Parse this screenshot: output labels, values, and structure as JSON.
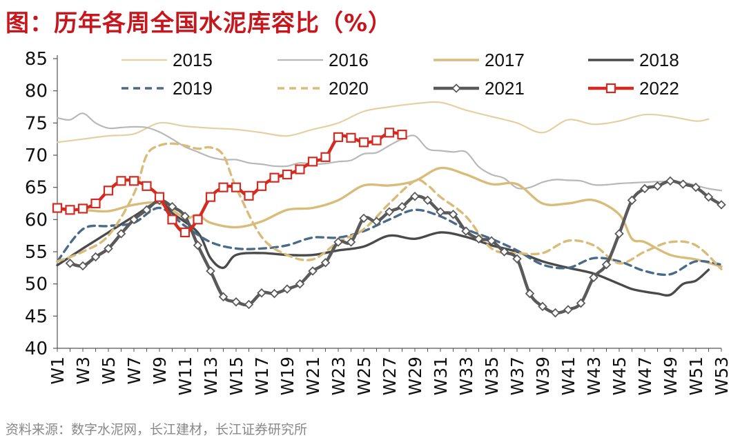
{
  "title": "图：历年各周全国水泥库容比（%）",
  "source": "资料来源：数字水泥网，长江建材，长江证券研究所",
  "colors": {
    "2015": "#e6cfa0",
    "2016": "#b8b8b8",
    "2017": "#d9bb7a",
    "2018": "#4a4a4a",
    "2019": "#4a6a8a",
    "2020": "#d9bb7a",
    "2021": "#5a5a5a",
    "2022": "#d42a20"
  },
  "chart_data": {
    "type": "line",
    "title": "历年各周全国水泥库容比（%）",
    "xlabel": "",
    "ylabel": "",
    "ylim": [
      40,
      85
    ],
    "yticks": [
      "40",
      "45",
      "50",
      "55",
      "60",
      "65",
      "70",
      "75",
      "80",
      "85"
    ],
    "xlim": [
      1,
      53
    ],
    "x_tick_labels": [
      "W1",
      "W3",
      "W5",
      "W7",
      "W9",
      "W11",
      "W13",
      "W15",
      "W17",
      "W19",
      "W21",
      "W23",
      "W25",
      "W27",
      "W29",
      "W31",
      "W33",
      "W35",
      "W37",
      "W39",
      "W41",
      "W43",
      "W45",
      "W47",
      "W49",
      "W51",
      "W53"
    ],
    "legend_position": "top",
    "series": [
      {
        "name": "2015",
        "style": "solid-thin",
        "weeks": [
          1,
          3,
          5,
          7,
          9,
          11,
          13,
          15,
          17,
          19,
          21,
          23,
          25,
          27,
          29,
          31,
          33,
          35,
          37,
          39,
          41,
          43,
          45,
          47,
          49,
          51,
          52
        ],
        "values": [
          72,
          72.5,
          73,
          73.3,
          75,
          74.5,
          74.2,
          74,
          73.5,
          73,
          74,
          75,
          76.8,
          77.5,
          78,
          78.2,
          77,
          76,
          75,
          73.5,
          75.5,
          74.8,
          75.3,
          76.3,
          76,
          75.3,
          75.6
        ]
      },
      {
        "name": "2016",
        "style": "solid-thin",
        "weeks": [
          1,
          2,
          3,
          4,
          5,
          6,
          7,
          8,
          9,
          10,
          11,
          12,
          13,
          14,
          15,
          16,
          17,
          18,
          19,
          20,
          21,
          22,
          23,
          24,
          25,
          26,
          27,
          28,
          29,
          30,
          31,
          32,
          33,
          34,
          35,
          36,
          37,
          38,
          39,
          40,
          41,
          42,
          43,
          44,
          45,
          46,
          47,
          48,
          49,
          50,
          51,
          52,
          53
        ],
        "values": [
          75.8,
          75.5,
          76.5,
          75,
          74.2,
          74.3,
          74.4,
          74.3,
          73.6,
          72.5,
          71.3,
          70.5,
          69.7,
          69.3,
          69.3,
          68.8,
          68.6,
          68.3,
          68.3,
          68.8,
          68.6,
          68.7,
          69,
          69.2,
          70.2,
          70.4,
          71.5,
          72.5,
          73,
          71,
          70.7,
          70.5,
          70.5,
          68.2,
          67,
          66.4,
          64.9,
          65,
          65.8,
          66.2,
          66.1,
          66,
          65.4,
          65.4,
          65.6,
          65.7,
          65.8,
          65.9,
          65.9,
          65.8,
          65.3,
          64.8,
          64.5
        ]
      },
      {
        "name": "2017",
        "style": "solid-thick",
        "weeks": [
          1,
          3,
          5,
          7,
          9,
          11,
          12,
          13,
          15,
          17,
          19,
          21,
          23,
          25,
          27,
          29,
          31,
          33,
          35,
          37,
          39,
          41,
          43,
          45,
          46,
          47,
          49,
          51,
          53
        ],
        "values": [
          61.7,
          61.5,
          61.3,
          62.3,
          62.5,
          60.3,
          60.7,
          59.5,
          58.8,
          59.7,
          61.5,
          61.8,
          63,
          65.3,
          65.3,
          66,
          68,
          67,
          65.5,
          65.5,
          62.5,
          62.5,
          63,
          60.8,
          57,
          56.5,
          54.5,
          53.8,
          52.7
        ]
      },
      {
        "name": "2018",
        "style": "solid-thick",
        "weeks": [
          1,
          3,
          5,
          7,
          9,
          10,
          12,
          13,
          14,
          15,
          17,
          19,
          21,
          23,
          25,
          27,
          29,
          31,
          33,
          35,
          37,
          39,
          41,
          43,
          45,
          46,
          47,
          48,
          49,
          50,
          51,
          52
        ],
        "values": [
          52.9,
          55.5,
          58,
          60.5,
          62.8,
          61,
          58,
          54,
          52.5,
          54.5,
          54.8,
          54.5,
          54.5,
          55.2,
          55.8,
          57.5,
          57,
          58,
          57.3,
          56,
          55,
          53.5,
          52.5,
          51.6,
          50,
          49.2,
          48.8,
          48.5,
          48.3,
          50,
          50.5,
          52.2
        ]
      },
      {
        "name": "2019",
        "style": "dash",
        "weeks": [
          1,
          3,
          5,
          7,
          9,
          11,
          13,
          15,
          17,
          19,
          21,
          23,
          25,
          27,
          29,
          31,
          33,
          35,
          37,
          39,
          41,
          43,
          45,
          47,
          49,
          51,
          53
        ],
        "values": [
          53.5,
          58.5,
          59,
          59.5,
          61.8,
          59,
          56.5,
          55.5,
          55.5,
          56,
          57.2,
          57.2,
          58.2,
          60,
          61.5,
          60.5,
          58.5,
          57,
          55.2,
          53,
          52.5,
          54,
          53.5,
          52,
          51.5,
          53.5,
          53
        ]
      },
      {
        "name": "2020",
        "style": "dash",
        "weeks": [
          1,
          3,
          5,
          7,
          8,
          9,
          10,
          11,
          12,
          13,
          14,
          15,
          17,
          19,
          21,
          23,
          25,
          27,
          29,
          30,
          31,
          33,
          35,
          37,
          39,
          41,
          43,
          45,
          47,
          49,
          51,
          53
        ],
        "values": [
          53.5,
          55,
          57.5,
          64,
          70,
          71.5,
          71.8,
          71.5,
          71,
          71.2,
          70,
          65,
          57.3,
          54.5,
          53.8,
          56.5,
          58.5,
          62.5,
          66,
          65.3,
          63.5,
          60.5,
          55.5,
          54.8,
          54.8,
          56.7,
          56,
          53.2,
          55,
          56.5,
          56,
          52.3
        ]
      },
      {
        "name": "2021",
        "style": "marker-diamond",
        "weeks": [
          2,
          3,
          4,
          5,
          6,
          7,
          8,
          9,
          10,
          11,
          12,
          13,
          14,
          15,
          16,
          17,
          18,
          19,
          20,
          21,
          22,
          23,
          24,
          25,
          26,
          27,
          28,
          29,
          30,
          31,
          32,
          33,
          34,
          35,
          36,
          37,
          38,
          39,
          40,
          41,
          42,
          43,
          44,
          45,
          46,
          47,
          48,
          49,
          50,
          51,
          52,
          53
        ],
        "values": [
          53.2,
          52.8,
          54.2,
          55.5,
          57.8,
          60,
          61.5,
          63,
          62,
          60.5,
          56,
          52,
          48,
          47.2,
          46.8,
          48.6,
          48.5,
          49.2,
          50,
          52,
          53.3,
          56.5,
          56.5,
          60.2,
          59.7,
          61.2,
          62,
          63.6,
          63,
          61.2,
          60.8,
          58.2,
          57,
          56.7,
          55,
          53.9,
          48.5,
          46.5,
          45.5,
          46,
          47,
          51,
          53,
          57.8,
          63,
          64.8,
          65.2,
          66,
          65.5,
          65,
          63.5,
          62.3
        ]
      },
      {
        "name": "2022",
        "style": "marker-square",
        "weeks": [
          1,
          2,
          3,
          4,
          5,
          6,
          7,
          8,
          9,
          10,
          11,
          12,
          13,
          14,
          15,
          16,
          17,
          18,
          19,
          20,
          21,
          22,
          23,
          24,
          25,
          26,
          27,
          28
        ],
        "values": [
          61.8,
          61.5,
          61.7,
          62.5,
          64.5,
          66,
          66,
          65.2,
          63.5,
          60,
          58,
          60,
          63.5,
          65,
          65,
          63.7,
          65.2,
          66.5,
          67,
          67.8,
          69,
          69.7,
          72.8,
          72.7,
          72,
          72.3,
          73.5,
          73.2
        ]
      }
    ]
  }
}
